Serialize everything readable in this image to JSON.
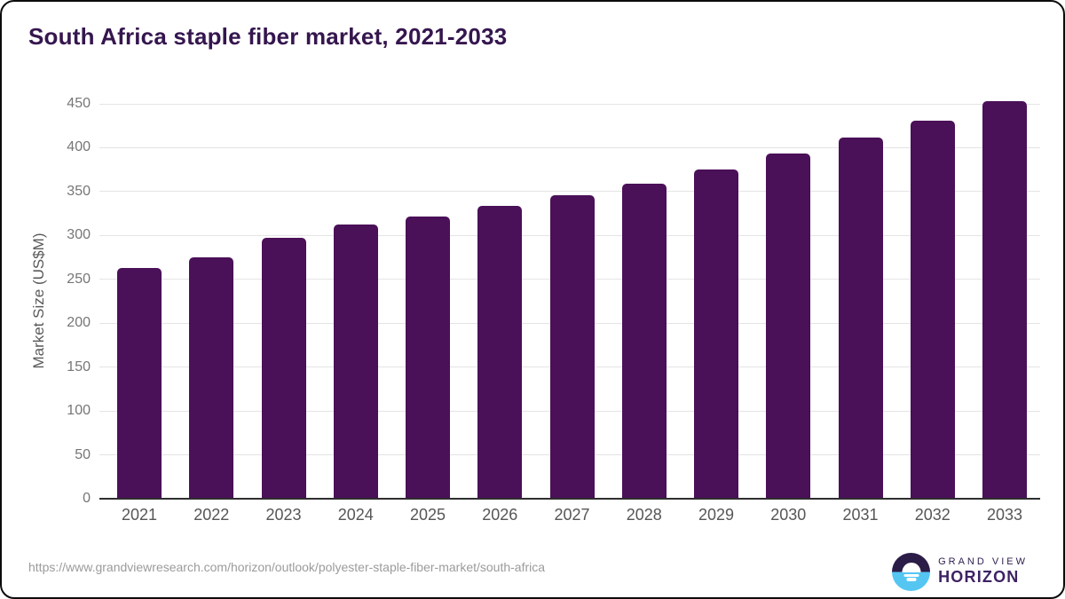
{
  "title": "South Africa staple fiber market, 2021-2033",
  "chart_data": {
    "type": "bar",
    "title": "South Africa staple fiber market, 2021-2033",
    "categories": [
      "2021",
      "2022",
      "2023",
      "2024",
      "2025",
      "2026",
      "2027",
      "2028",
      "2029",
      "2030",
      "2031",
      "2032",
      "2033"
    ],
    "values": [
      263,
      275,
      297,
      312,
      322,
      334,
      346,
      359,
      375,
      393,
      412,
      431,
      453
    ],
    "xlabel": "",
    "ylabel": "Market Size (US$M)",
    "ylim": [
      0,
      450
    ],
    "ytick_step": 50,
    "grid": "horizontal",
    "legend_position": "none",
    "bar_color": "#4a1058"
  },
  "footer": {
    "source_url": "https://www.grandviewresearch.com/horizon/outlook/polyester-staple-fiber-market/south-africa",
    "logo": {
      "line1": "GRAND VIEW",
      "line2": "HORIZON"
    }
  },
  "colors": {
    "title_text": "#35164e",
    "bar_fill": "#4a1058",
    "gridline": "#e4e4e4",
    "axis_line": "#2e2e2e",
    "axis_tick_text": "#767676",
    "x_label_text": "#565656",
    "url_text": "#9b9b9b",
    "logo_dark_purple": "#2b1b47",
    "logo_light_blue": "#55c6f2",
    "frame_border": "#0b0b0b"
  }
}
